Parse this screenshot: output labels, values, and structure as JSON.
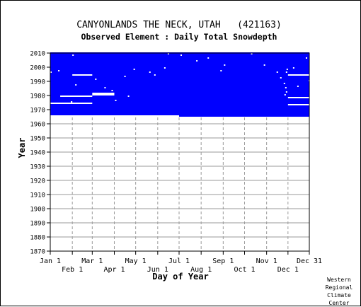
{
  "chart_data": {
    "type": "heatmap",
    "title": "CANYONLANDS THE NECK, UTAH   (421163)",
    "subtitle": "Observed Element : Daily Total Snowdepth",
    "xlabel": "Day of Year",
    "ylabel": "Year",
    "x_range": [
      "Jan 1",
      "Dec 31"
    ],
    "ylim": [
      1870,
      2010
    ],
    "x_ticks_upper": [
      "Jan 1",
      "Mar 1",
      "May 1",
      "Jul 1",
      "Sep 1",
      "Nov 1",
      "Dec 31"
    ],
    "x_ticks_lower": [
      "Feb 1",
      "Apr 1",
      "Jun 1",
      "Aug 1",
      "Oct 1",
      "Dec 1"
    ],
    "y_ticks": [
      "1870",
      "1880",
      "1890",
      "1900",
      "1910",
      "1920",
      "1930",
      "1940",
      "1950",
      "1960",
      "1970",
      "1980",
      "1990",
      "2000",
      "2010"
    ],
    "grid": true,
    "data_color": "#0000ff",
    "coverage": {
      "first_year": 1965,
      "first_year_jan_to_jun": 1966,
      "last_year": 2010
    },
    "missing_periods": [
      {
        "year": 1974,
        "from": "Jan 1",
        "to": "Feb 28"
      },
      {
        "year": 1994,
        "from": "Feb 1",
        "to": "Feb 28"
      },
      {
        "year": 1981,
        "from": "Mar 1",
        "to": "Mar 31"
      },
      {
        "year": 1980,
        "from": "Mar 1",
        "to": "Mar 31"
      },
      {
        "year": 1979,
        "from": "Jan 15",
        "to": "Feb 28"
      },
      {
        "year": 1973,
        "from": "Dec 1",
        "to": "Dec 31"
      },
      {
        "year": 1978,
        "from": "Dec 1",
        "to": "Dec 31"
      },
      {
        "year": 1994,
        "from": "Dec 1",
        "to": "Dec 31"
      },
      {
        "year": 1996,
        "from": "Jan 1",
        "to": "Jan 2"
      },
      {
        "year": 2008,
        "from": "Feb 1",
        "to": "Feb 1"
      }
    ],
    "missing_spots": [
      {
        "year": 1997,
        "day": "Jan 12"
      },
      {
        "year": 1998,
        "day": "Apr 28"
      },
      {
        "year": 1996,
        "day": "May 20"
      },
      {
        "year": 1994,
        "day": "May 27"
      },
      {
        "year": 1993,
        "day": "Apr 15"
      },
      {
        "year": 1991,
        "day": "Mar 5"
      },
      {
        "year": 1987,
        "day": "Feb 5"
      },
      {
        "year": 1985,
        "day": "Mar 18"
      },
      {
        "year": 1983,
        "day": "Mar 28"
      },
      {
        "year": 1976,
        "day": "Apr 2"
      },
      {
        "year": 1975,
        "day": "Jan 30"
      },
      {
        "year": 1979,
        "day": "Apr 20"
      },
      {
        "year": 2004,
        "day": "Jul 25"
      },
      {
        "year": 2001,
        "day": "Sep 2"
      },
      {
        "year": 1999,
        "day": "Jun 10"
      },
      {
        "year": 2009,
        "day": "Jun 15"
      },
      {
        "year": 2008,
        "day": "Jul 3"
      },
      {
        "year": 2009,
        "day": "Oct 10"
      },
      {
        "year": 2006,
        "day": "Aug 10"
      },
      {
        "year": 1996,
        "day": "Nov 15"
      },
      {
        "year": 1992,
        "day": "Nov 20"
      },
      {
        "year": 1988,
        "day": "Nov 25"
      },
      {
        "year": 1985,
        "day": "Nov 27"
      },
      {
        "year": 1996,
        "day": "Nov 28"
      },
      {
        "year": 1998,
        "day": "Nov 29"
      },
      {
        "year": 1986,
        "day": "Dec 14"
      },
      {
        "year": 1999,
        "day": "Dec 8"
      },
      {
        "year": 1982,
        "day": "Nov 28"
      },
      {
        "year": 2001,
        "day": "Oct 28"
      },
      {
        "year": 1997,
        "day": "Aug 28"
      },
      {
        "year": 1980,
        "day": "Nov 26"
      },
      {
        "year": 2006,
        "day": "Dec 26"
      },
      {
        "year": 1990,
        "day": "Dec 30"
      }
    ]
  },
  "credit": {
    "lines": [
      "Western",
      "Regional",
      "Climate",
      "Center"
    ]
  }
}
